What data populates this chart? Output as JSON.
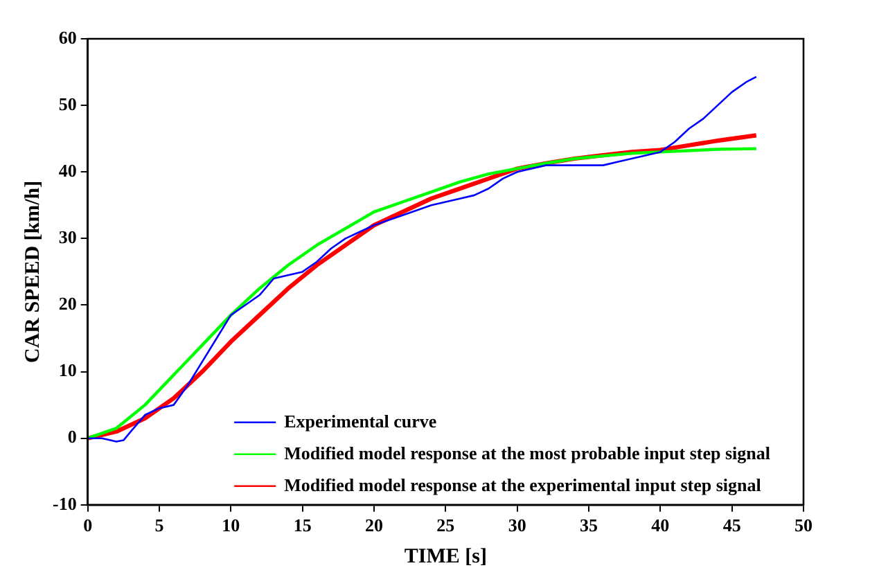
{
  "chart_data": {
    "type": "line",
    "xlabel": "TIME [s]",
    "ylabel": "CAR SPEED [km/h]",
    "xlim": [
      0,
      50
    ],
    "xticks": [
      0,
      5,
      10,
      15,
      20,
      25,
      30,
      35,
      40,
      45,
      50
    ],
    "ylim": [
      -10,
      60
    ],
    "yticks": [
      -10,
      0,
      10,
      20,
      30,
      40,
      50,
      60
    ],
    "grid": false,
    "legend": "bottom right",
    "marker": "none",
    "line_style": "solid",
    "series": [
      {
        "name": "Experimental curve",
        "color": "#0000ff",
        "x": [
          0,
          1,
          2,
          2.5,
          3,
          4,
          5,
          6,
          7,
          8,
          9,
          10,
          11,
          12,
          13,
          14,
          15,
          16,
          17,
          18,
          19,
          20,
          22,
          24,
          26,
          27,
          28,
          29,
          30,
          31,
          32,
          33,
          35,
          36,
          37,
          38,
          39,
          40,
          41,
          42,
          43,
          44,
          45,
          46,
          46.7
        ],
        "values": [
          0,
          0,
          -0.5,
          -0.3,
          1,
          3.5,
          4.5,
          5,
          8,
          11.5,
          15,
          18.5,
          20,
          21.5,
          24,
          24.5,
          25,
          26.5,
          28.5,
          30,
          31,
          32,
          33.5,
          35,
          36,
          36.5,
          37.5,
          39,
          40,
          40.5,
          41,
          41,
          41,
          41,
          41.5,
          42,
          42.5,
          43,
          44.5,
          46.5,
          48,
          50,
          52,
          53.5,
          54.3
        ]
      },
      {
        "name": "Modified model response at the most probable input step signal",
        "color": "#00ff00",
        "x": [
          0,
          2,
          4,
          6,
          8,
          10,
          12,
          14,
          16,
          18,
          20,
          22,
          24,
          26,
          28,
          30,
          32,
          34,
          36,
          38,
          40,
          42,
          44,
          46.7
        ],
        "values": [
          0,
          1.5,
          5,
          9.5,
          14,
          18.5,
          22.5,
          26,
          29,
          31.5,
          34,
          35.5,
          37,
          38.5,
          39.7,
          40.5,
          41.3,
          42,
          42.4,
          42.8,
          43,
          43.2,
          43.4,
          43.5
        ]
      },
      {
        "name": "Modified model response at the experimental input step signal",
        "color": "#ff0000",
        "x": [
          0,
          2,
          4,
          6,
          8,
          10,
          12,
          14,
          16,
          18,
          20,
          22,
          24,
          26,
          28,
          30,
          32,
          34,
          36,
          38,
          40,
          42,
          44,
          46.7
        ],
        "values": [
          0,
          1,
          3,
          6,
          10,
          14.5,
          18.5,
          22.5,
          26,
          29,
          32,
          34,
          36,
          37.5,
          39,
          40.5,
          41.3,
          42,
          42.5,
          43,
          43.3,
          44,
          44.7,
          45.5
        ]
      }
    ]
  }
}
